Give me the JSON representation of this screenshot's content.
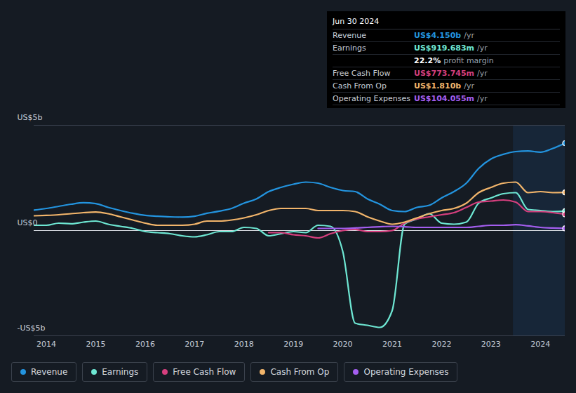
{
  "chart_data": {
    "type": "area",
    "x": [
      2013.75,
      2014,
      2014.25,
      2014.5,
      2014.75,
      2015,
      2015.25,
      2015.5,
      2015.75,
      2016,
      2016.25,
      2016.5,
      2016.75,
      2017,
      2017.25,
      2017.5,
      2017.75,
      2018,
      2018.25,
      2018.5,
      2018.75,
      2019,
      2019.25,
      2019.5,
      2019.75,
      2020,
      2020.25,
      2020.5,
      2020.75,
      2021,
      2021.25,
      2021.5,
      2021.75,
      2022,
      2022.25,
      2022.5,
      2022.75,
      2023,
      2023.25,
      2023.5,
      2023.75,
      2024,
      2024.25,
      2024.5
    ],
    "series": [
      {
        "name": "Revenue",
        "color": "#2394df",
        "values": [
          0.97,
          1.05,
          1.15,
          1.25,
          1.32,
          1.28,
          1.1,
          0.95,
          0.82,
          0.72,
          0.68,
          0.65,
          0.64,
          0.68,
          0.82,
          0.92,
          1.05,
          1.3,
          1.5,
          1.85,
          2.05,
          2.2,
          2.3,
          2.25,
          2.05,
          1.9,
          1.85,
          1.5,
          1.25,
          0.95,
          0.9,
          1.1,
          1.2,
          1.55,
          1.85,
          2.25,
          2.95,
          3.4,
          3.62,
          3.75,
          3.78,
          3.72,
          3.9,
          4.15
        ]
      },
      {
        "name": "Earnings",
        "color": "#6ee7d3",
        "values": [
          0.25,
          0.25,
          0.35,
          0.32,
          0.4,
          0.45,
          0.3,
          0.2,
          0.1,
          -0.05,
          -0.1,
          -0.15,
          -0.25,
          -0.3,
          -0.2,
          -0.05,
          -0.05,
          0.15,
          0.1,
          -0.25,
          -0.15,
          -0.05,
          -0.1,
          0.25,
          0.2,
          -1.0,
          -4.4,
          -4.5,
          -4.6,
          -3.8,
          0.3,
          0.55,
          0.8,
          0.35,
          0.3,
          0.4,
          1.3,
          1.55,
          1.75,
          1.8,
          1.0,
          0.95,
          0.9,
          0.92
        ]
      },
      {
        "name": "Free Cash Flow",
        "color": "#d63f7e",
        "values": [
          null,
          null,
          null,
          null,
          null,
          null,
          null,
          null,
          null,
          null,
          null,
          null,
          null,
          null,
          null,
          null,
          null,
          null,
          null,
          -0.1,
          -0.1,
          -0.2,
          -0.25,
          -0.35,
          -0.15,
          0.0,
          0.05,
          -0.05,
          -0.05,
          0.0,
          0.35,
          0.55,
          0.65,
          0.75,
          0.85,
          1.1,
          1.35,
          1.4,
          1.45,
          1.35,
          0.9,
          0.9,
          0.85,
          0.77
        ]
      },
      {
        "name": "Cash From Op",
        "color": "#f2b56b",
        "values": [
          0.7,
          0.72,
          0.75,
          0.8,
          0.85,
          0.88,
          0.8,
          0.65,
          0.5,
          0.35,
          0.25,
          0.25,
          0.25,
          0.3,
          0.45,
          0.45,
          0.5,
          0.6,
          0.75,
          0.95,
          1.05,
          1.05,
          1.05,
          0.95,
          0.95,
          0.95,
          0.9,
          0.65,
          0.45,
          0.3,
          0.4,
          0.6,
          0.8,
          0.95,
          1.05,
          1.3,
          1.8,
          2.05,
          2.25,
          2.3,
          1.8,
          1.85,
          1.8,
          1.81
        ]
      },
      {
        "name": "Operating Expenses",
        "color": "#a45ef0",
        "values": [
          null,
          null,
          null,
          null,
          null,
          null,
          null,
          null,
          null,
          null,
          null,
          null,
          null,
          null,
          null,
          null,
          null,
          null,
          null,
          null,
          null,
          null,
          null,
          0.1,
          0.1,
          0.1,
          0.12,
          0.15,
          0.18,
          0.2,
          0.18,
          0.15,
          0.15,
          0.15,
          0.15,
          0.15,
          0.2,
          0.25,
          0.25,
          0.28,
          0.22,
          0.15,
          0.12,
          0.104
        ]
      }
    ],
    "xlim": [
      2013.75,
      2024.5
    ],
    "xticks": [
      2014,
      2015,
      2016,
      2017,
      2018,
      2019,
      2020,
      2021,
      2022,
      2023,
      2024
    ],
    "ylim": [
      -5,
      5
    ],
    "yticks": [
      {
        "value": 5,
        "label": "US$5b"
      },
      {
        "value": 0,
        "label": "US$0"
      },
      {
        "value": -5,
        "label": "-US$5b"
      }
    ],
    "highlight_x": [
      2023.45,
      2024.5
    ],
    "grid": true,
    "legend": "bottom",
    "annotation": {
      "title": "Jun 30 2024",
      "rows": [
        {
          "series": "Revenue",
          "text": "US$4.150b",
          "unit": "/yr"
        },
        {
          "series": "Earnings",
          "text": "US$919.683m",
          "unit": "/yr"
        },
        {
          "text": "22.2%",
          "unit": "profit margin"
        },
        {
          "series": "Free Cash Flow",
          "text": "US$773.745m",
          "unit": "/yr"
        },
        {
          "series": "Cash From Op",
          "text": "US$1.810b",
          "unit": "/yr"
        },
        {
          "series": "Operating Expenses",
          "text": "US$104.055m",
          "unit": "/yr"
        }
      ]
    }
  }
}
